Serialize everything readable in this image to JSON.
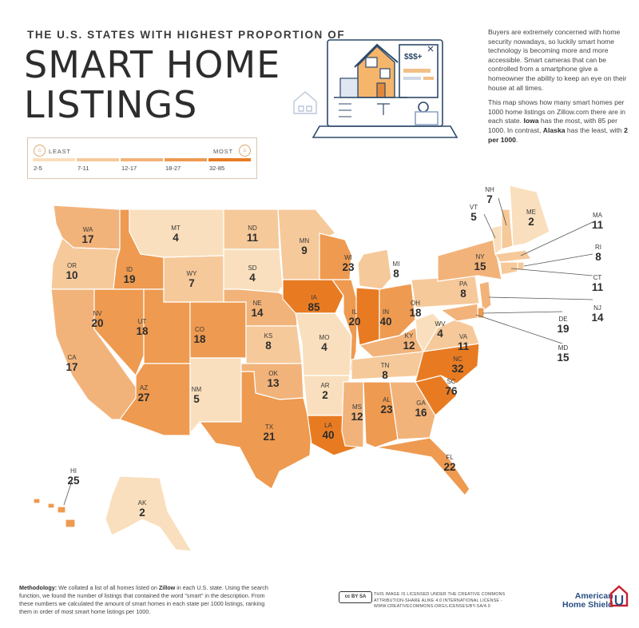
{
  "header": {
    "eyebrow": "THE U.S. STATES WITH HIGHEST PROPORTION OF",
    "title_line1": "SMART HOME",
    "title_line2": "LISTINGS"
  },
  "intro": {
    "paragraph1": "Buyers are extremely concerned with home security nowadays, so luckily smart home technology is becoming more and more accessible. Smart cameras that can be controlled from a smartphone give a homeowner the ability to keep an eye on their house at all times.",
    "p2_a": "This map shows how many smart homes per 1000 home listings on Zillow.com there are in each state. ",
    "p2_b": "Iowa",
    "p2_c": " has the most, with 85 per 1000. In contrast, ",
    "p2_d": "Alaska",
    "p2_e": " has the least, with ",
    "p2_f": "2 per 1000",
    "p2_g": "."
  },
  "illustration": {
    "price_tag": "$$$+"
  },
  "legend": {
    "least_label": "LEAST",
    "most_label": "MOST",
    "ranges": [
      "2-5",
      "7-11",
      "12-17",
      "18-27",
      "32-85"
    ],
    "colors": [
      "#f9dfbd",
      "#f6c99a",
      "#f2b37a",
      "#ee9a50",
      "#e87b22"
    ]
  },
  "colors": {
    "state_stroke": "#ffffff",
    "leader_line": "#555555"
  },
  "chart_data": {
    "type": "choropleth",
    "title": "THE U.S. STATES WITH HIGHEST PROPORTION OF SMART HOME LISTINGS",
    "unit": "smart homes per 1000 listings",
    "states": [
      {
        "abbr": "WA",
        "value": 17
      },
      {
        "abbr": "OR",
        "value": 10
      },
      {
        "abbr": "CA",
        "value": 17
      },
      {
        "abbr": "ID",
        "value": 19
      },
      {
        "abbr": "NV",
        "value": 20
      },
      {
        "abbr": "UT",
        "value": 18
      },
      {
        "abbr": "AZ",
        "value": 27
      },
      {
        "abbr": "MT",
        "value": 4
      },
      {
        "abbr": "WY",
        "value": 7
      },
      {
        "abbr": "CO",
        "value": 18
      },
      {
        "abbr": "NM",
        "value": 5
      },
      {
        "abbr": "ND",
        "value": 11
      },
      {
        "abbr": "SD",
        "value": 4
      },
      {
        "abbr": "NE",
        "value": 14
      },
      {
        "abbr": "KS",
        "value": 8
      },
      {
        "abbr": "OK",
        "value": 13
      },
      {
        "abbr": "TX",
        "value": 21
      },
      {
        "abbr": "MN",
        "value": 9
      },
      {
        "abbr": "IA",
        "value": 85
      },
      {
        "abbr": "MO",
        "value": 4
      },
      {
        "abbr": "AR",
        "value": 2
      },
      {
        "abbr": "LA",
        "value": 40
      },
      {
        "abbr": "WI",
        "value": 23
      },
      {
        "abbr": "IL",
        "value": 20
      },
      {
        "abbr": "MI",
        "value": 8
      },
      {
        "abbr": "IN",
        "value": 40
      },
      {
        "abbr": "OH",
        "value": 18
      },
      {
        "abbr": "KY",
        "value": 12
      },
      {
        "abbr": "TN",
        "value": 8
      },
      {
        "abbr": "MS",
        "value": 12
      },
      {
        "abbr": "AL",
        "value": 23
      },
      {
        "abbr": "GA",
        "value": 16
      },
      {
        "abbr": "FL",
        "value": 22
      },
      {
        "abbr": "SC",
        "value": 76
      },
      {
        "abbr": "NC",
        "value": 32
      },
      {
        "abbr": "VA",
        "value": 11
      },
      {
        "abbr": "WV",
        "value": 4
      },
      {
        "abbr": "PA",
        "value": 8
      },
      {
        "abbr": "NY",
        "value": 15
      },
      {
        "abbr": "VT",
        "value": 5
      },
      {
        "abbr": "NH",
        "value": 7
      },
      {
        "abbr": "ME",
        "value": 2
      },
      {
        "abbr": "MA",
        "value": 11
      },
      {
        "abbr": "RI",
        "value": 8
      },
      {
        "abbr": "CT",
        "value": 11
      },
      {
        "abbr": "NJ",
        "value": 14
      },
      {
        "abbr": "DE",
        "value": 19
      },
      {
        "abbr": "MD",
        "value": 15
      },
      {
        "abbr": "HI",
        "value": 25
      },
      {
        "abbr": "AK",
        "value": 2
      }
    ]
  },
  "footer": {
    "methodology_label": "Methodology:",
    "m_a": " We collated a list of all homes listed on ",
    "m_b": "Zillow",
    "m_c": " in each U.S. state. Using the search function, we found the number of listings that contained the word \"smart\" in the description. From these numbers we calculated the amount of smart homes in each state per 1000 listings, ranking them in order of most smart home listings per 1000.",
    "cc_badge": "cc BY SA",
    "license": "THIS IMAGE IS LICENSED UNDER THE CREATIVE COMMONS ATTRIBUTION-SHARE ALIKE 4.0 INTERNATIONAL LICENSE - WWW.CREATIVECOMMONS.ORG/LICENSES/BY-SA/4.0",
    "brand_line1": "American",
    "brand_line2": "Home Shield"
  }
}
